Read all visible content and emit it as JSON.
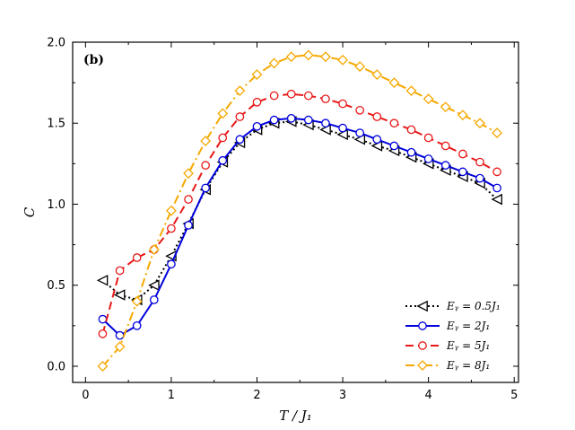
{
  "chart_data": {
    "type": "line",
    "panel_label": "(b)",
    "xlabel": "T / J₁",
    "ylabel": "C",
    "xlim": [
      -0.15,
      5.05
    ],
    "ylim": [
      -0.1,
      2.0
    ],
    "xticks": [
      0,
      1,
      2,
      3,
      4,
      5
    ],
    "yticks": [
      0.0,
      0.5,
      1.0,
      1.5,
      2.0
    ],
    "xtick_labels": [
      "0",
      "1",
      "2",
      "3",
      "4",
      "5"
    ],
    "ytick_labels": [
      "0.0",
      "0.5",
      "1.0",
      "1.5",
      "2.0"
    ],
    "grid": false,
    "legend_position": "bottom-right",
    "series": [
      {
        "name": "E_y = 0.5J₁",
        "legend_label": "Eᵧ = 0.5J₁",
        "color": "#000000",
        "dash": "2,3",
        "marker": "triangle-left",
        "x": [
          0.2,
          0.4,
          0.6,
          0.8,
          1.0,
          1.2,
          1.4,
          1.6,
          1.8,
          2.0,
          2.2,
          2.4,
          2.6,
          2.8,
          3.0,
          3.2,
          3.4,
          3.6,
          3.8,
          4.0,
          4.2,
          4.4,
          4.6,
          4.8
        ],
        "y": [
          0.53,
          0.44,
          0.41,
          0.5,
          0.68,
          0.88,
          1.09,
          1.26,
          1.38,
          1.46,
          1.5,
          1.51,
          1.49,
          1.46,
          1.43,
          1.4,
          1.36,
          1.33,
          1.29,
          1.25,
          1.21,
          1.17,
          1.13,
          1.03
        ]
      },
      {
        "name": "E_y = 2J₁",
        "legend_label": "Eᵧ = 2J₁",
        "color": "#0000dd",
        "dash": "",
        "marker": "circle",
        "x": [
          0.2,
          0.4,
          0.6,
          0.8,
          1.0,
          1.2,
          1.4,
          1.6,
          1.8,
          2.0,
          2.2,
          2.4,
          2.6,
          2.8,
          3.0,
          3.2,
          3.4,
          3.6,
          3.8,
          4.0,
          4.2,
          4.4,
          4.6,
          4.8
        ],
        "y": [
          0.29,
          0.19,
          0.25,
          0.41,
          0.63,
          0.87,
          1.1,
          1.27,
          1.4,
          1.48,
          1.52,
          1.53,
          1.52,
          1.5,
          1.47,
          1.44,
          1.4,
          1.36,
          1.32,
          1.28,
          1.24,
          1.2,
          1.16,
          1.1
        ]
      },
      {
        "name": "E_y = 5J₁",
        "legend_label": "Eᵧ = 5J₁",
        "color": "#e81818",
        "dash": "9,5",
        "marker": "circle",
        "x": [
          0.2,
          0.4,
          0.6,
          0.8,
          1.0,
          1.2,
          1.4,
          1.6,
          1.8,
          2.0,
          2.2,
          2.4,
          2.6,
          2.8,
          3.0,
          3.2,
          3.4,
          3.6,
          3.8,
          4.0,
          4.2,
          4.4,
          4.6,
          4.8
        ],
        "y": [
          0.2,
          0.59,
          0.67,
          0.72,
          0.85,
          1.03,
          1.24,
          1.41,
          1.54,
          1.63,
          1.67,
          1.68,
          1.67,
          1.65,
          1.62,
          1.58,
          1.54,
          1.5,
          1.46,
          1.41,
          1.36,
          1.31,
          1.26,
          1.2
        ]
      },
      {
        "name": "E_y = 8J₁",
        "legend_label": "Eᵧ = 8J₁",
        "color": "#f5a800",
        "dash": "10,4,2,4",
        "marker": "diamond",
        "x": [
          0.2,
          0.4,
          0.6,
          0.8,
          1.0,
          1.2,
          1.4,
          1.6,
          1.8,
          2.0,
          2.2,
          2.4,
          2.6,
          2.8,
          3.0,
          3.2,
          3.4,
          3.6,
          3.8,
          4.0,
          4.2,
          4.4,
          4.6,
          4.8
        ],
        "y": [
          0.0,
          0.12,
          0.4,
          0.72,
          0.96,
          1.19,
          1.39,
          1.56,
          1.7,
          1.8,
          1.87,
          1.91,
          1.92,
          1.91,
          1.89,
          1.85,
          1.8,
          1.75,
          1.7,
          1.65,
          1.6,
          1.55,
          1.5,
          1.44
        ]
      }
    ]
  }
}
